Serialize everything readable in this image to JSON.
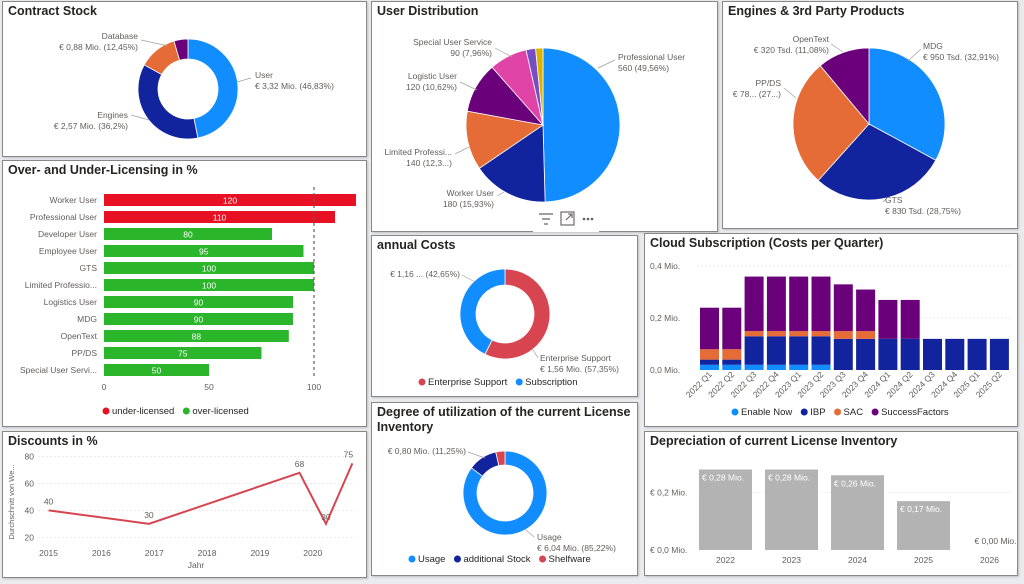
{
  "contract_stock": {
    "title": "Contract Stock",
    "chart_data": {
      "type": "pie",
      "variant": "donut",
      "slices": [
        {
          "name": "User",
          "value_label": "€ 3,32 Mio. (46,83%)",
          "value": 46.83,
          "color": "#118dff"
        },
        {
          "name": "Engines",
          "value_label": "€ 2,57 Mio. (36,2%)",
          "value": 36.2,
          "color": "#12239e"
        },
        {
          "name": "Database",
          "value_label": "€ 0,88 Mio. (12,45%)",
          "value": 12.45,
          "color": "#e66c37"
        },
        {
          "name": "",
          "value_label": "",
          "value": 4.52,
          "color": "#6b007b"
        }
      ]
    }
  },
  "user_distribution": {
    "title": "User Distribution",
    "chart_data": {
      "type": "pie",
      "slices": [
        {
          "name": "Professional User",
          "value_label": "560 (49,56%)",
          "value": 49.56,
          "color": "#118dff"
        },
        {
          "name": "Worker User",
          "value_label": "180 (15,93%)",
          "value": 15.93,
          "color": "#12239e"
        },
        {
          "name": "Limited Professi...",
          "value_label": "140 (12,3...)",
          "value": 12.39,
          "color": "#e66c37"
        },
        {
          "name": "Logistic User",
          "value_label": "120 (10,62%)",
          "value": 10.62,
          "color": "#6b007b"
        },
        {
          "name": "Special User Service",
          "value_label": "90 (7,96%)",
          "value": 7.96,
          "color": "#e044a7"
        },
        {
          "name": "",
          "value_label": "",
          "value": 2.0,
          "color": "#744ec2"
        },
        {
          "name": "",
          "value_label": "",
          "value": 1.54,
          "color": "#d9b300"
        }
      ]
    }
  },
  "engines": {
    "title": "Engines & 3rd Party Products",
    "chart_data": {
      "type": "pie",
      "slices": [
        {
          "name": "MDG",
          "value_label": "€ 950 Tsd. (32,91%)",
          "value": 32.91,
          "color": "#118dff"
        },
        {
          "name": "GTS",
          "value_label": "€ 830 Tsd. (28,75%)",
          "value": 28.75,
          "color": "#12239e"
        },
        {
          "name": "PP/DS",
          "value_label": "€ 78... (27...)",
          "value": 27.26,
          "color": "#e66c37"
        },
        {
          "name": "OpenText",
          "value_label": "€ 320 Tsd. (11,08%)",
          "value": 11.08,
          "color": "#6b007b"
        }
      ]
    }
  },
  "licensing": {
    "title": "Over- and Under-Licensing in %",
    "chart_data": {
      "type": "bar",
      "orientation": "horizontal",
      "categories": [
        "Worker User",
        "Professional User",
        "Developer User",
        "Employee User",
        "GTS",
        "Limited Professio...",
        "Logistics User",
        "MDG",
        "OpenText",
        "PP/DS",
        "Special User Servi..."
      ],
      "values": [
        120,
        110,
        80,
        95,
        100,
        100,
        90,
        90,
        88,
        75,
        50
      ],
      "status": [
        "under",
        "under",
        "over",
        "over",
        "over",
        "over",
        "over",
        "over",
        "over",
        "over",
        "over"
      ],
      "xticks": [
        0,
        50,
        100
      ],
      "xlim": [
        0,
        122
      ],
      "reference_line": 100,
      "legend": [
        {
          "name": "under-licensed",
          "color": "#e81123"
        },
        {
          "name": "over-licensed",
          "color": "#2bb52b"
        }
      ]
    }
  },
  "discounts": {
    "title": "Discounts in %",
    "chart_data": {
      "type": "line",
      "x": [
        2015.0,
        2016.9,
        2019.75,
        2020.25,
        2020.75
      ],
      "values": [
        40,
        30,
        68,
        30,
        75
      ],
      "xticks": [
        2015,
        2016,
        2017,
        2018,
        2019,
        2020
      ],
      "yticks": [
        20,
        40,
        60,
        80
      ],
      "xlim": [
        2014.8,
        2020.8
      ],
      "ylim": [
        15,
        82
      ],
      "xlabel": "Jahr",
      "ylabel": "Durchschnitt von We...",
      "color": "#d64550"
    }
  },
  "annual_costs": {
    "title": "annual Costs",
    "chart_data": {
      "type": "pie",
      "variant": "donut",
      "slices": [
        {
          "name": "Enterprise Support",
          "value_label": "€ 1,56 Mio. (57,35%)",
          "value": 57.35,
          "color": "#d64550"
        },
        {
          "name": "Subscription",
          "value_label": "€ 1,16 ... (42,65%)",
          "value": 42.65,
          "color": "#118dff"
        }
      ]
    }
  },
  "utilization": {
    "title_line1": "Degree of utilization of the current License",
    "title_line2": "Inventory",
    "chart_data": {
      "type": "pie",
      "variant": "donut",
      "slices": [
        {
          "name": "Usage",
          "value_label": "€ 6,04 Mio. (85,22%)",
          "value": 85.22,
          "color": "#118dff"
        },
        {
          "name": "additional Stock",
          "value_label": "€ 0,80 Mio. (11,25%)",
          "value": 11.25,
          "color": "#12239e"
        },
        {
          "name": "Shelfware",
          "value_label": "",
          "value": 3.53,
          "color": "#d64550"
        }
      ]
    }
  },
  "cloud": {
    "title": "Cloud Subscription (Costs per Quarter)",
    "chart_data": {
      "type": "bar",
      "stacked": true,
      "categories": [
        "2022 Q1",
        "2022 Q2",
        "2022 Q3",
        "2022 Q4",
        "2023 Q1",
        "2023 Q2",
        "2023 Q3",
        "2023 Q4",
        "2024 Q1",
        "2024 Q2",
        "2024 Q3",
        "2024 Q4",
        "2025 Q1",
        "2025 Q2"
      ],
      "series": [
        {
          "name": "Enable Now",
          "color": "#118dff",
          "values": [
            0.02,
            0.02,
            0.02,
            0.02,
            0.02,
            0.02,
            0,
            0,
            0,
            0,
            0,
            0,
            0,
            0
          ]
        },
        {
          "name": "IBP",
          "color": "#12239e",
          "values": [
            0.02,
            0.02,
            0.11,
            0.11,
            0.11,
            0.11,
            0.12,
            0.12,
            0.12,
            0.12,
            0.12,
            0.12,
            0.12,
            0.12
          ]
        },
        {
          "name": "SAC",
          "color": "#e66c37",
          "values": [
            0.04,
            0.04,
            0.02,
            0.02,
            0.02,
            0.02,
            0.03,
            0.03,
            0,
            0,
            0,
            0,
            0,
            0
          ]
        },
        {
          "name": "SuccessFactors",
          "color": "#6b007b",
          "values": [
            0.16,
            0.16,
            0.21,
            0.21,
            0.21,
            0.21,
            0.18,
            0.16,
            0.15,
            0.15,
            0,
            0,
            0,
            0
          ]
        }
      ],
      "yticks": [
        0,
        0.2,
        0.4
      ],
      "ytick_labels": [
        "0,0 Mio.",
        "0,2 Mio.",
        "0,4 Mio."
      ],
      "ylim": [
        0,
        0.42
      ]
    }
  },
  "depreciation": {
    "title": "Depreciation of current License Inventory",
    "chart_data": {
      "type": "bar",
      "categories": [
        "2022",
        "2023",
        "2024",
        "2025",
        "2026"
      ],
      "values": [
        0.28,
        0.28,
        0.26,
        0.17,
        0.0
      ],
      "value_labels": [
        "€ 0,28 Mio.",
        "€ 0,28 Mio.",
        "€ 0,26 Mio.",
        "€ 0,17 Mio.",
        "€ 0,00 Mio."
      ],
      "yticks": [
        0,
        0.2
      ],
      "ytick_labels": [
        "€ 0,0 Mio.",
        "€ 0,2 Mio."
      ],
      "ylim": [
        0,
        0.32
      ],
      "color": "#b3b3b3"
    }
  }
}
